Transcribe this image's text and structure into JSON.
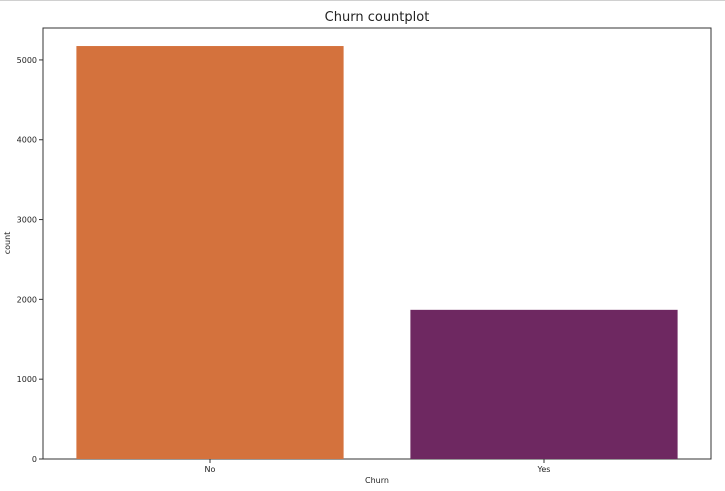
{
  "chart_data": {
    "type": "bar",
    "title": "Churn countplot",
    "xlabel": "Churn",
    "ylabel": "count",
    "categories": [
      "No",
      "Yes"
    ],
    "values": [
      5174,
      1869
    ],
    "colors": [
      "#d4723d",
      "#6e2861"
    ],
    "ylim": [
      0,
      5400
    ],
    "yticks": [
      0,
      1000,
      2000,
      3000,
      4000,
      5000
    ],
    "grid": false,
    "legend": "none"
  }
}
